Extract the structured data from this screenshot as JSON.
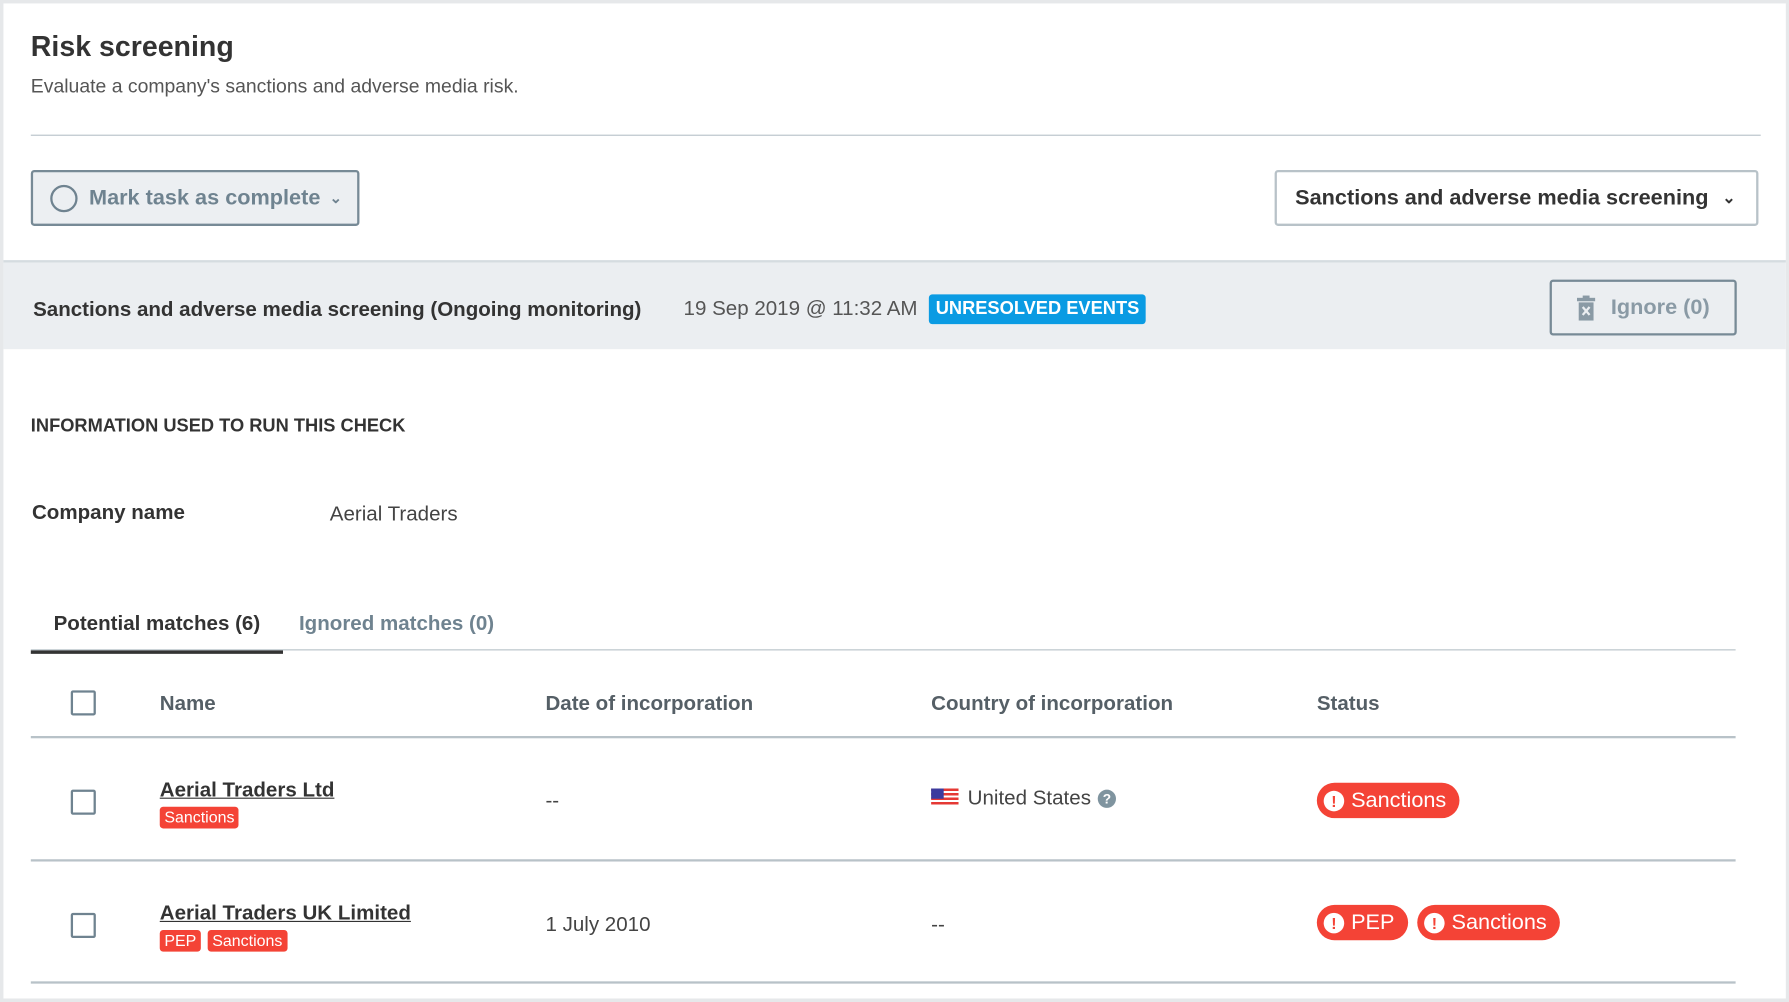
{
  "header": {
    "title": "Risk screening",
    "subtitle": "Evaluate a company's sanctions and adverse media risk."
  },
  "toolbar": {
    "mark_complete_label": "Mark task as complete",
    "check_type_dropdown": "Sanctions and adverse media screening"
  },
  "check": {
    "title": "Sanctions and adverse media screening (Ongoing monitoring)",
    "timestamp": "19 Sep 2019 @ 11:32 AM",
    "badge": "UNRESOLVED EVENTS",
    "badge_color": "#0a9be3",
    "ignore_label": "Ignore (0)"
  },
  "info": {
    "section_title": "INFORMATION USED TO RUN THIS CHECK",
    "company_label": "Company name",
    "company_value": "Aerial Traders"
  },
  "tabs": [
    {
      "label": "Potential matches (6)",
      "active": true
    },
    {
      "label": "Ignored matches (0)",
      "active": false
    }
  ],
  "table": {
    "columns": [
      "Name",
      "Date of incorporation",
      "Country of incorporation",
      "Status"
    ],
    "rows": [
      {
        "name": "Aerial Traders Ltd",
        "tags": [
          "Sanctions"
        ],
        "date": "--",
        "country": "United States",
        "country_flag": "us-flag-icon",
        "statuses": [
          "Sanctions"
        ]
      },
      {
        "name": "Aerial Traders UK Limited",
        "tags": [
          "PEP",
          "Sanctions"
        ],
        "date": "1 July 2010",
        "country": "--",
        "statuses": [
          "PEP",
          "Sanctions"
        ]
      }
    ]
  },
  "colors": {
    "alert": "#f44336",
    "border": "#778a96"
  }
}
